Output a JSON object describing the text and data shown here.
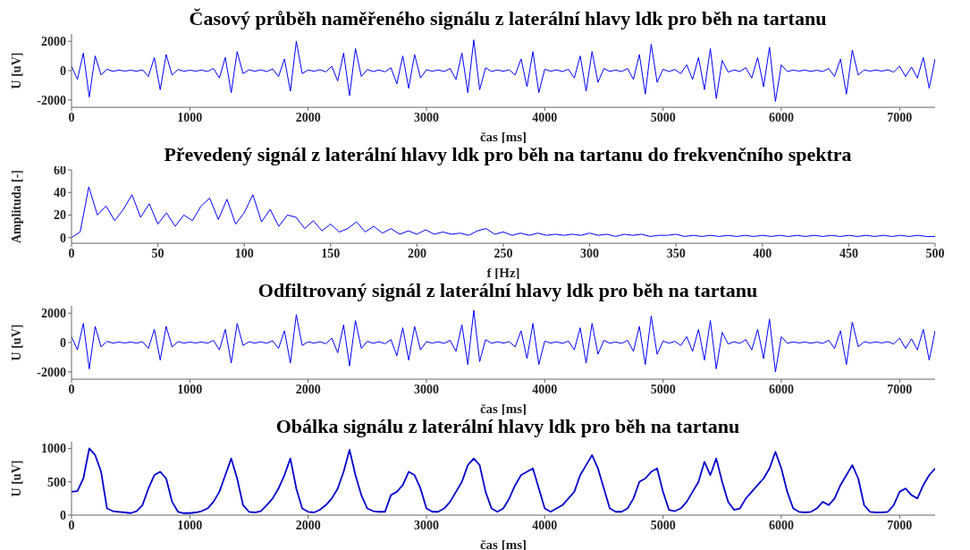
{
  "chart_data": [
    {
      "type": "line",
      "title": "Časový průběh naměřeného signálu z laterální hlavy ldk pro běh na tartanu",
      "xlabel": "čas [ms]",
      "ylabel": "U [uV]",
      "marker": "none",
      "xlim": [
        0,
        7300
      ],
      "xticks": [
        0,
        1000,
        2000,
        3000,
        4000,
        5000,
        6000,
        7000
      ],
      "ylim": [
        -2500,
        2500
      ],
      "yticks": [
        -2000,
        0,
        2000
      ],
      "x": [
        0,
        50,
        100,
        150,
        200,
        250,
        300,
        350,
        400,
        450,
        500,
        550,
        600,
        650,
        700,
        750,
        800,
        850,
        900,
        950,
        1000,
        1050,
        1100,
        1150,
        1200,
        1250,
        1300,
        1350,
        1400,
        1450,
        1500,
        1550,
        1600,
        1650,
        1700,
        1750,
        1800,
        1850,
        1900,
        1950,
        2000,
        2050,
        2100,
        2150,
        2200,
        2250,
        2300,
        2350,
        2400,
        2450,
        2500,
        2550,
        2600,
        2650,
        2700,
        2750,
        2800,
        2850,
        2900,
        2950,
        3000,
        3050,
        3100,
        3150,
        3200,
        3250,
        3300,
        3350,
        3400,
        3450,
        3500,
        3550,
        3600,
        3650,
        3700,
        3750,
        3800,
        3850,
        3900,
        3950,
        4000,
        4050,
        4100,
        4150,
        4200,
        4250,
        4300,
        4350,
        4400,
        4450,
        4500,
        4550,
        4600,
        4650,
        4700,
        4750,
        4800,
        4850,
        4900,
        4950,
        5000,
        5050,
        5100,
        5150,
        5200,
        5250,
        5300,
        5350,
        5400,
        5450,
        5500,
        5550,
        5600,
        5650,
        5700,
        5750,
        5800,
        5850,
        5900,
        5950,
        6000,
        6050,
        6100,
        6150,
        6200,
        6250,
        6300,
        6350,
        6400,
        6450,
        6500,
        6550,
        6600,
        6650,
        6700,
        6750,
        6800,
        6850,
        6900,
        6950,
        7000,
        7050,
        7100,
        7150,
        7200,
        7250,
        7300
      ],
      "series": [
        {
          "color": "#0000ff",
          "values": [
            300,
            -600,
            1200,
            -1800,
            1000,
            -300,
            100,
            -50,
            40,
            -30,
            30,
            -40,
            60,
            -400,
            900,
            -1300,
            1100,
            -300,
            80,
            -40,
            30,
            -30,
            40,
            -60,
            150,
            -500,
            900,
            -1500,
            1300,
            -200,
            60,
            -40,
            50,
            -60,
            120,
            -400,
            800,
            -1400,
            2000,
            -200,
            50,
            -40,
            60,
            -80,
            300,
            -700,
            1200,
            -1700,
            1500,
            -400,
            80,
            -60,
            50,
            -80,
            200,
            -900,
            1000,
            -1200,
            1100,
            -500,
            60,
            -40,
            50,
            -60,
            150,
            -600,
            1200,
            -1500,
            2100,
            -1300,
            200,
            -60,
            50,
            -40,
            60,
            -300,
            800,
            -1100,
            1300,
            -1500,
            100,
            -40,
            50,
            -60,
            100,
            -500,
            1000,
            -1400,
            1300,
            -800,
            150,
            -50,
            40,
            -60,
            150,
            -600,
            1100,
            -1600,
            1800,
            -800,
            100,
            -60,
            80,
            -200,
            400,
            -600,
            900,
            -1300,
            1500,
            -1900,
            700,
            -100,
            50,
            -60,
            200,
            -500,
            900,
            -1100,
            1600,
            -2100,
            400,
            -60,
            40,
            -30,
            40,
            -50,
            30,
            -60,
            150,
            -400,
            800,
            -1600,
            1400,
            -300,
            50,
            -30,
            40,
            -30,
            60,
            -100,
            300,
            -400,
            250,
            -500,
            900,
            -1200,
            800
          ]
        }
      ]
    },
    {
      "type": "line",
      "title": "Převedený signál z laterální hlavy ldk pro běh na tartanu do frekvenčního spektra",
      "xlabel": "f [Hz]",
      "ylabel": "Amplituda [-]",
      "marker": "none",
      "xlim": [
        0,
        500
      ],
      "xticks": [
        0,
        50,
        100,
        150,
        200,
        250,
        300,
        350,
        400,
        450,
        500
      ],
      "ylim": [
        -5,
        60
      ],
      "yticks": [
        0,
        20,
        40,
        60
      ],
      "x": [
        0,
        5,
        10,
        15,
        20,
        25,
        30,
        35,
        40,
        45,
        50,
        55,
        60,
        65,
        70,
        75,
        80,
        85,
        90,
        95,
        100,
        105,
        110,
        115,
        120,
        125,
        130,
        135,
        140,
        145,
        150,
        155,
        160,
        165,
        170,
        175,
        180,
        185,
        190,
        195,
        200,
        205,
        210,
        215,
        220,
        225,
        230,
        235,
        240,
        245,
        250,
        255,
        260,
        265,
        270,
        275,
        280,
        285,
        290,
        295,
        300,
        305,
        310,
        315,
        320,
        325,
        330,
        335,
        340,
        345,
        350,
        355,
        360,
        365,
        370,
        375,
        380,
        385,
        390,
        395,
        400,
        405,
        410,
        415,
        420,
        425,
        430,
        435,
        440,
        445,
        450,
        455,
        460,
        465,
        470,
        475,
        480,
        485,
        490,
        495,
        500
      ],
      "series": [
        {
          "color": "#0000ff",
          "values": [
            0,
            5,
            45,
            20,
            28,
            15,
            25,
            38,
            18,
            30,
            12,
            22,
            10,
            20,
            15,
            28,
            35,
            16,
            34,
            12,
            22,
            38,
            14,
            25,
            10,
            20,
            18,
            8,
            15,
            6,
            12,
            5,
            8,
            14,
            5,
            10,
            4,
            8,
            3,
            6,
            3,
            7,
            3,
            5,
            3,
            4,
            2,
            6,
            8,
            3,
            5,
            2,
            4,
            2,
            4,
            2,
            3,
            2,
            3,
            2,
            4,
            2,
            3,
            1,
            3,
            2,
            3,
            1,
            2,
            2,
            3,
            1,
            2,
            1,
            2,
            1,
            2,
            1,
            2,
            1,
            2,
            1,
            2,
            1,
            2,
            1,
            2,
            1,
            2,
            1,
            2,
            1,
            2,
            1,
            2,
            1,
            2,
            1,
            2,
            1,
            1
          ]
        }
      ]
    },
    {
      "type": "line",
      "title": "Odfiltrovaný signál z laterální hlavy ldk pro běh na tartanu",
      "xlabel": "čas [ms]",
      "ylabel": "U [uV]",
      "marker": "none",
      "xlim": [
        0,
        7300
      ],
      "xticks": [
        0,
        1000,
        2000,
        3000,
        4000,
        5000,
        6000,
        7000
      ],
      "ylim": [
        -2500,
        2500
      ],
      "yticks": [
        -2000,
        0,
        2000
      ],
      "x": [
        0,
        50,
        100,
        150,
        200,
        250,
        300,
        350,
        400,
        450,
        500,
        550,
        600,
        650,
        700,
        750,
        800,
        850,
        900,
        950,
        1000,
        1050,
        1100,
        1150,
        1200,
        1250,
        1300,
        1350,
        1400,
        1450,
        1500,
        1550,
        1600,
        1650,
        1700,
        1750,
        1800,
        1850,
        1900,
        1950,
        2000,
        2050,
        2100,
        2150,
        2200,
        2250,
        2300,
        2350,
        2400,
        2450,
        2500,
        2550,
        2600,
        2650,
        2700,
        2750,
        2800,
        2850,
        2900,
        2950,
        3000,
        3050,
        3100,
        3150,
        3200,
        3250,
        3300,
        3350,
        3400,
        3450,
        3500,
        3550,
        3600,
        3650,
        3700,
        3750,
        3800,
        3850,
        3900,
        3950,
        4000,
        4050,
        4100,
        4150,
        4200,
        4250,
        4300,
        4350,
        4400,
        4450,
        4500,
        4550,
        4600,
        4650,
        4700,
        4750,
        4800,
        4850,
        4900,
        4950,
        5000,
        5050,
        5100,
        5150,
        5200,
        5250,
        5300,
        5350,
        5400,
        5450,
        5500,
        5550,
        5600,
        5650,
        5700,
        5750,
        5800,
        5850,
        5900,
        5950,
        6000,
        6050,
        6100,
        6150,
        6200,
        6250,
        6300,
        6350,
        6400,
        6450,
        6500,
        6550,
        6600,
        6650,
        6700,
        6750,
        6800,
        6850,
        6900,
        6950,
        7000,
        7050,
        7100,
        7150,
        7200,
        7250,
        7300
      ],
      "series": [
        {
          "color": "#0000ff",
          "values": [
            400,
            -500,
            1300,
            -1800,
            1100,
            -300,
            80,
            -40,
            30,
            -30,
            30,
            -40,
            50,
            -400,
            900,
            -1200,
            1100,
            -300,
            60,
            -40,
            30,
            -30,
            40,
            -50,
            150,
            -500,
            900,
            -1400,
            1300,
            -200,
            50,
            -40,
            50,
            -50,
            120,
            -400,
            800,
            -1400,
            1900,
            -200,
            50,
            -40,
            50,
            -80,
            300,
            -700,
            1200,
            -1600,
            1500,
            -400,
            80,
            -50,
            50,
            -80,
            200,
            -900,
            1000,
            -1200,
            1100,
            -500,
            60,
            -40,
            50,
            -60,
            150,
            -600,
            1200,
            -1500,
            2200,
            -1300,
            200,
            -50,
            50,
            -40,
            60,
            -300,
            800,
            -1100,
            1300,
            -1500,
            100,
            -40,
            50,
            -60,
            100,
            -500,
            1000,
            -1400,
            1300,
            -800,
            150,
            -50,
            40,
            -60,
            150,
            -600,
            1100,
            -1500,
            1800,
            -800,
            100,
            -50,
            80,
            -200,
            400,
            -600,
            900,
            -1200,
            1500,
            -1800,
            700,
            -100,
            50,
            -60,
            200,
            -500,
            900,
            -1100,
            1600,
            -2000,
            400,
            -50,
            40,
            -30,
            40,
            -50,
            30,
            -60,
            150,
            -400,
            800,
            -1500,
            1400,
            -300,
            50,
            -30,
            40,
            -30,
            60,
            -100,
            300,
            -400,
            250,
            -500,
            900,
            -1200,
            800
          ]
        }
      ]
    },
    {
      "type": "line",
      "title": "Obálka signálu z laterální hlavy ldk pro běh na tartanu",
      "xlabel": "čas [ms]",
      "ylabel": "U [uV]",
      "marker": "none",
      "xlim": [
        0,
        7300
      ],
      "xticks": [
        0,
        1000,
        2000,
        3000,
        4000,
        5000,
        6000,
        7000
      ],
      "ylim": [
        0,
        1100
      ],
      "yticks": [
        0,
        500,
        1000
      ],
      "x": [
        0,
        50,
        100,
        150,
        200,
        250,
        300,
        350,
        400,
        450,
        500,
        550,
        600,
        650,
        700,
        750,
        800,
        850,
        900,
        950,
        1000,
        1050,
        1100,
        1150,
        1200,
        1250,
        1300,
        1350,
        1400,
        1450,
        1500,
        1550,
        1600,
        1650,
        1700,
        1750,
        1800,
        1850,
        1900,
        1950,
        2000,
        2050,
        2100,
        2150,
        2200,
        2250,
        2300,
        2350,
        2400,
        2450,
        2500,
        2550,
        2600,
        2650,
        2700,
        2750,
        2800,
        2850,
        2900,
        2950,
        3000,
        3050,
        3100,
        3150,
        3200,
        3250,
        3300,
        3350,
        3400,
        3450,
        3500,
        3550,
        3600,
        3650,
        3700,
        3750,
        3800,
        3850,
        3900,
        3950,
        4000,
        4050,
        4100,
        4150,
        4200,
        4250,
        4300,
        4350,
        4400,
        4450,
        4500,
        4550,
        4600,
        4650,
        4700,
        4750,
        4800,
        4850,
        4900,
        4950,
        5000,
        5050,
        5100,
        5150,
        5200,
        5250,
        5300,
        5350,
        5400,
        5450,
        5500,
        5550,
        5600,
        5650,
        5700,
        5750,
        5800,
        5850,
        5900,
        5950,
        6000,
        6050,
        6100,
        6150,
        6200,
        6250,
        6300,
        6350,
        6400,
        6450,
        6500,
        6550,
        6600,
        6650,
        6700,
        6750,
        6800,
        6850,
        6900,
        6950,
        7000,
        7050,
        7100,
        7150,
        7200,
        7250,
        7300
      ],
      "series": [
        {
          "color": "#0000cc",
          "values": [
            350,
            360,
            550,
            1000,
            900,
            650,
            100,
            60,
            50,
            40,
            30,
            60,
            150,
            400,
            600,
            650,
            550,
            200,
            50,
            30,
            30,
            40,
            60,
            100,
            200,
            350,
            600,
            850,
            550,
            150,
            50,
            40,
            60,
            150,
            250,
            400,
            600,
            850,
            400,
            100,
            50,
            40,
            80,
            150,
            250,
            400,
            650,
            980,
            600,
            300,
            100,
            60,
            50,
            50,
            300,
            350,
            450,
            650,
            600,
            400,
            100,
            50,
            50,
            100,
            200,
            350,
            500,
            750,
            850,
            750,
            350,
            100,
            50,
            100,
            250,
            450,
            600,
            650,
            700,
            400,
            100,
            50,
            100,
            150,
            250,
            350,
            600,
            750,
            900,
            700,
            400,
            100,
            50,
            50,
            100,
            250,
            500,
            550,
            650,
            700,
            350,
            80,
            60,
            100,
            200,
            350,
            500,
            800,
            600,
            850,
            500,
            200,
            80,
            100,
            250,
            350,
            450,
            550,
            700,
            950,
            700,
            350,
            100,
            50,
            40,
            50,
            100,
            200,
            150,
            250,
            450,
            600,
            750,
            550,
            150,
            50,
            40,
            40,
            50,
            150,
            350,
            400,
            300,
            250,
            450,
            600,
            700
          ]
        }
      ]
    }
  ]
}
